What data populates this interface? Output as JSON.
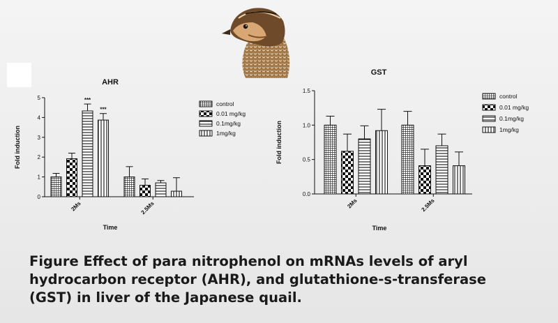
{
  "caption": {
    "line1": "Figure  Effect of para nitrophenol on mRNAs levels of aryl",
    "line2": "hydrocarbon receptor (AHR), and glutathione-s-transferase",
    "line3": "(GST) in liver of the Japanese quail."
  },
  "image": {
    "description": "quail-head-illustration"
  },
  "chart_data": [
    {
      "type": "bar",
      "title": "AHR",
      "xlabel": "Time",
      "ylabel": "Fold induction",
      "categories": [
        "2Ms",
        "2.5Ms"
      ],
      "ylim": [
        0,
        5
      ],
      "yticks": [
        "0",
        "1",
        "2",
        "3",
        "4",
        "5"
      ],
      "legend_position": "right",
      "series": [
        {
          "name": "control",
          "pattern": "grid",
          "values": [
            1.0,
            1.0
          ],
          "errors": [
            0.18,
            0.52
          ]
        },
        {
          "name": "0.01 mg/kg",
          "pattern": "checker",
          "values": [
            1.92,
            0.58
          ],
          "errors": [
            0.28,
            0.32
          ]
        },
        {
          "name": "0.1mg/kg",
          "pattern": "hlines",
          "values": [
            4.33,
            0.7
          ],
          "errors": [
            0.35,
            0.12
          ]
        },
        {
          "name": "1mg/kg",
          "pattern": "vlines",
          "values": [
            3.87,
            0.28
          ],
          "errors": [
            0.33,
            0.68
          ]
        }
      ],
      "annotations": [
        {
          "series": 2,
          "category": 0,
          "text": "***"
        },
        {
          "series": 3,
          "category": 0,
          "text": "***"
        }
      ]
    },
    {
      "type": "bar",
      "title": "GST",
      "xlabel": "Time",
      "ylabel": "Fold induction",
      "categories": [
        "2Ms",
        "2.5Ms"
      ],
      "ylim": [
        0,
        1.5
      ],
      "yticks": [
        "0.0",
        "0.5",
        "1.0",
        "1.5"
      ],
      "legend_position": "right",
      "series": [
        {
          "name": "control",
          "pattern": "grid",
          "values": [
            1.0,
            1.0
          ],
          "errors": [
            0.13,
            0.2
          ]
        },
        {
          "name": "0.01 mg/kg",
          "pattern": "checker",
          "values": [
            0.62,
            0.41
          ],
          "errors": [
            0.25,
            0.24
          ]
        },
        {
          "name": "0.1mg/kg",
          "pattern": "hlines",
          "values": [
            0.8,
            0.7
          ],
          "errors": [
            0.19,
            0.17
          ]
        },
        {
          "name": "1mg/kg",
          "pattern": "vlines",
          "values": [
            0.92,
            0.41
          ],
          "errors": [
            0.31,
            0.2
          ]
        }
      ],
      "annotations": []
    }
  ]
}
